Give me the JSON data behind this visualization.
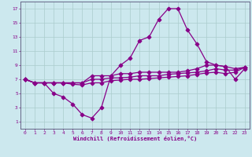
{
  "xlabel": "Windchill (Refroidissement éolien,°C)",
  "background_color": "#cce8ee",
  "grid_color": "#aacccc",
  "line_color": "#880088",
  "spine_color": "#666688",
  "xlim": [
    -0.5,
    23.5
  ],
  "ylim": [
    0,
    18
  ],
  "xticks": [
    0,
    1,
    2,
    3,
    4,
    5,
    6,
    7,
    8,
    9,
    10,
    11,
    12,
    13,
    14,
    15,
    16,
    17,
    18,
    19,
    20,
    21,
    22,
    23
  ],
  "yticks": [
    1,
    3,
    5,
    7,
    9,
    11,
    13,
    15,
    17
  ],
  "line1_x": [
    0,
    1,
    2,
    3,
    4,
    5,
    6,
    7,
    8,
    9,
    10,
    11,
    12,
    13,
    14,
    15,
    16,
    17,
    18,
    19,
    20,
    21,
    22,
    23
  ],
  "line1_y": [
    7,
    6.5,
    6.5,
    5,
    4.5,
    3.5,
    2,
    1.5,
    3,
    7.5,
    9,
    10,
    12.5,
    13,
    15.5,
    17,
    17,
    14,
    12,
    9.5,
    9,
    8.8,
    7,
    8.5
  ],
  "line2_x": [
    0,
    1,
    2,
    3,
    4,
    5,
    6,
    7,
    8,
    9,
    10,
    11,
    12,
    13,
    14,
    15,
    16,
    17,
    18,
    19,
    20,
    21,
    22,
    23
  ],
  "line2_y": [
    7,
    6.5,
    6.5,
    6.5,
    6.5,
    6.5,
    6.5,
    7.5,
    7.5,
    7.5,
    7.8,
    7.8,
    8.0,
    8.0,
    8.0,
    8.0,
    8.0,
    8.2,
    8.5,
    9.0,
    9.0,
    8.8,
    8.5,
    8.7
  ],
  "line3_x": [
    0,
    1,
    2,
    3,
    4,
    5,
    6,
    7,
    8,
    9,
    10,
    11,
    12,
    13,
    14,
    15,
    16,
    17,
    18,
    19,
    20,
    21,
    22,
    23
  ],
  "line3_y": [
    7,
    6.5,
    6.5,
    6.5,
    6.5,
    6.5,
    6.5,
    7.0,
    7.0,
    7.2,
    7.2,
    7.3,
    7.5,
    7.5,
    7.5,
    7.7,
    7.8,
    7.9,
    8.0,
    8.2,
    8.5,
    8.3,
    8.3,
    8.7
  ],
  "line4_x": [
    0,
    1,
    2,
    3,
    4,
    5,
    6,
    7,
    8,
    9,
    10,
    11,
    12,
    13,
    14,
    15,
    16,
    17,
    18,
    19,
    20,
    21,
    22,
    23
  ],
  "line4_y": [
    7,
    6.5,
    6.5,
    6.5,
    6.5,
    6.3,
    6.2,
    6.5,
    6.5,
    6.8,
    6.9,
    7.0,
    7.0,
    7.1,
    7.2,
    7.3,
    7.4,
    7.5,
    7.7,
    7.9,
    8.0,
    7.8,
    8.0,
    8.7
  ]
}
